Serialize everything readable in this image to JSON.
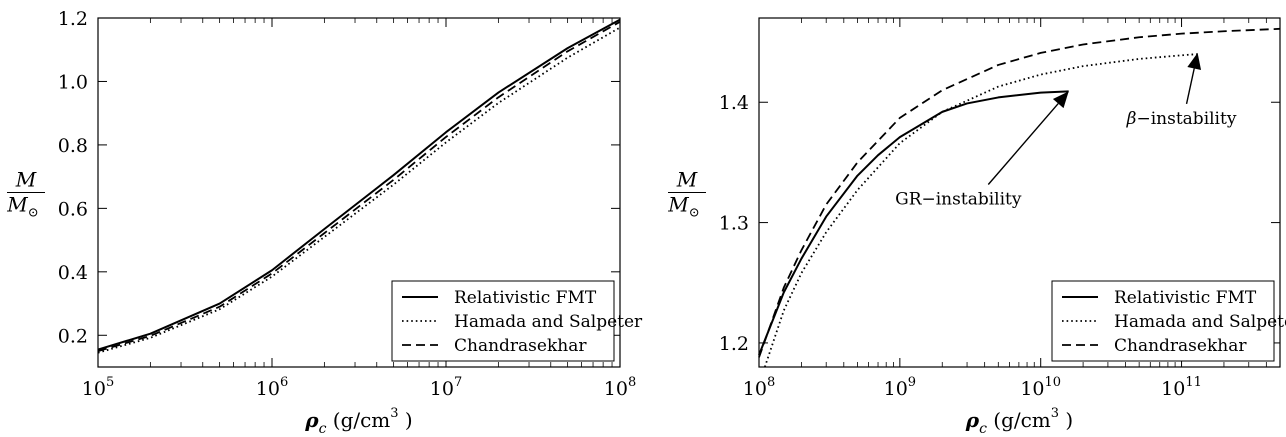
{
  "chart_data": [
    {
      "type": "line",
      "xscale": "log",
      "xlim": [
        100000,
        100000000
      ],
      "ylim": [
        0.1,
        1.2
      ],
      "xlabel_symbol": "ρ",
      "xlabel_sub": "c",
      "xlabel_units": "(g/cm",
      "xlabel_sup": "3",
      "xlabel_close": ")",
      "ylabel_num": "M",
      "ylabel_den": "M",
      "ylabel_den_sub": "⊙",
      "xticks": [
        {
          "value": 100000,
          "base": "10",
          "exp": "5"
        },
        {
          "value": 1000000,
          "base": "10",
          "exp": "6"
        },
        {
          "value": 10000000,
          "base": "10",
          "exp": "7"
        },
        {
          "value": 100000000,
          "base": "10",
          "exp": "8"
        }
      ],
      "yticks": [
        {
          "value": 0.2,
          "label": "0.2"
        },
        {
          "value": 0.4,
          "label": "0.4"
        },
        {
          "value": 0.6,
          "label": "0.6"
        },
        {
          "value": 0.8,
          "label": "0.8"
        },
        {
          "value": 1.0,
          "label": "1.0"
        },
        {
          "value": 1.2,
          "label": "1.2"
        }
      ],
      "grid": false,
      "legend_position": "bottom-right",
      "series": [
        {
          "name": "Relativistic FMT",
          "style": "solid",
          "x": [
            100000,
            200000,
            500000,
            1000000,
            2000000,
            5000000,
            10000000,
            20000000,
            50000000,
            100000000
          ],
          "y": [
            0.155,
            0.205,
            0.3,
            0.405,
            0.535,
            0.705,
            0.84,
            0.965,
            1.105,
            1.195
          ]
        },
        {
          "name": "Hamada and Salpeter",
          "style": "dotted",
          "x": [
            100000,
            200000,
            500000,
            1000000,
            2000000,
            5000000,
            10000000,
            20000000,
            50000000,
            100000000
          ],
          "y": [
            0.145,
            0.192,
            0.282,
            0.385,
            0.51,
            0.675,
            0.808,
            0.932,
            1.075,
            1.17
          ]
        },
        {
          "name": "Chandrasekhar",
          "style": "dashed",
          "x": [
            100000,
            200000,
            500000,
            1000000,
            2000000,
            5000000,
            10000000,
            20000000,
            50000000,
            100000000
          ],
          "y": [
            0.15,
            0.198,
            0.29,
            0.395,
            0.522,
            0.69,
            0.825,
            0.95,
            1.095,
            1.188
          ]
        }
      ]
    },
    {
      "type": "line",
      "xscale": "log",
      "xlim": [
        100000000,
        500000000000
      ],
      "ylim": [
        1.18,
        1.47
      ],
      "xlabel_symbol": "ρ",
      "xlabel_sub": "c",
      "xlabel_units": "(g/cm",
      "xlabel_sup": "3",
      "xlabel_close": ")",
      "ylabel_num": "M",
      "ylabel_den": "M",
      "ylabel_den_sub": "⊙",
      "xticks": [
        {
          "value": 100000000,
          "base": "10",
          "exp": "8"
        },
        {
          "value": 1000000000,
          "base": "10",
          "exp": "9"
        },
        {
          "value": 10000000000,
          "base": "10",
          "exp": "10"
        },
        {
          "value": 100000000000,
          "base": "10",
          "exp": "11"
        }
      ],
      "yticks": [
        {
          "value": 1.2,
          "label": "1.2"
        },
        {
          "value": 1.3,
          "label": "1.3"
        },
        {
          "value": 1.4,
          "label": "1.4"
        }
      ],
      "grid": false,
      "legend_position": "bottom-right",
      "series": [
        {
          "name": "Relativistic FMT",
          "style": "solid",
          "x": [
            100000000,
            150000000,
            200000000,
            300000000,
            500000000,
            700000000,
            1000000000,
            2000000000,
            3000000000,
            5000000000,
            10000000000,
            15800000000
          ],
          "y": [
            1.19,
            1.242,
            1.27,
            1.305,
            1.339,
            1.356,
            1.371,
            1.392,
            1.399,
            1.404,
            1.408,
            1.409
          ]
        },
        {
          "name": "Hamada and Salpeter",
          "style": "dotted",
          "x": [
            110000000,
            150000000,
            200000000,
            300000000,
            500000000,
            1000000000,
            2000000000,
            5000000000,
            10000000000,
            20000000000,
            50000000000,
            100000000000,
            130000000000
          ],
          "y": [
            1.18,
            1.227,
            1.258,
            1.292,
            1.327,
            1.366,
            1.392,
            1.413,
            1.423,
            1.43,
            1.436,
            1.439,
            1.44
          ]
        },
        {
          "name": "Chandrasekhar",
          "style": "dashed",
          "x": [
            100000000,
            150000000,
            200000000,
            300000000,
            500000000,
            1000000000,
            2000000000,
            5000000000,
            10000000000,
            20000000000,
            50000000000,
            100000000000,
            200000000000,
            500000000000
          ],
          "y": [
            1.188,
            1.246,
            1.277,
            1.315,
            1.35,
            1.387,
            1.41,
            1.431,
            1.441,
            1.448,
            1.454,
            1.457,
            1.459,
            1.461
          ]
        }
      ],
      "annotations": [
        {
          "text": "GR−instability",
          "text_x": 2600000000,
          "text_y": 1.32,
          "arrow_to_x": 15800000000,
          "arrow_to_y": 1.409
        },
        {
          "prefix": "β",
          "text": "−instability",
          "text_x": 100000000000,
          "text_y": 1.387,
          "arrow_to_x": 130000000000,
          "arrow_to_y": 1.441
        }
      ]
    }
  ]
}
